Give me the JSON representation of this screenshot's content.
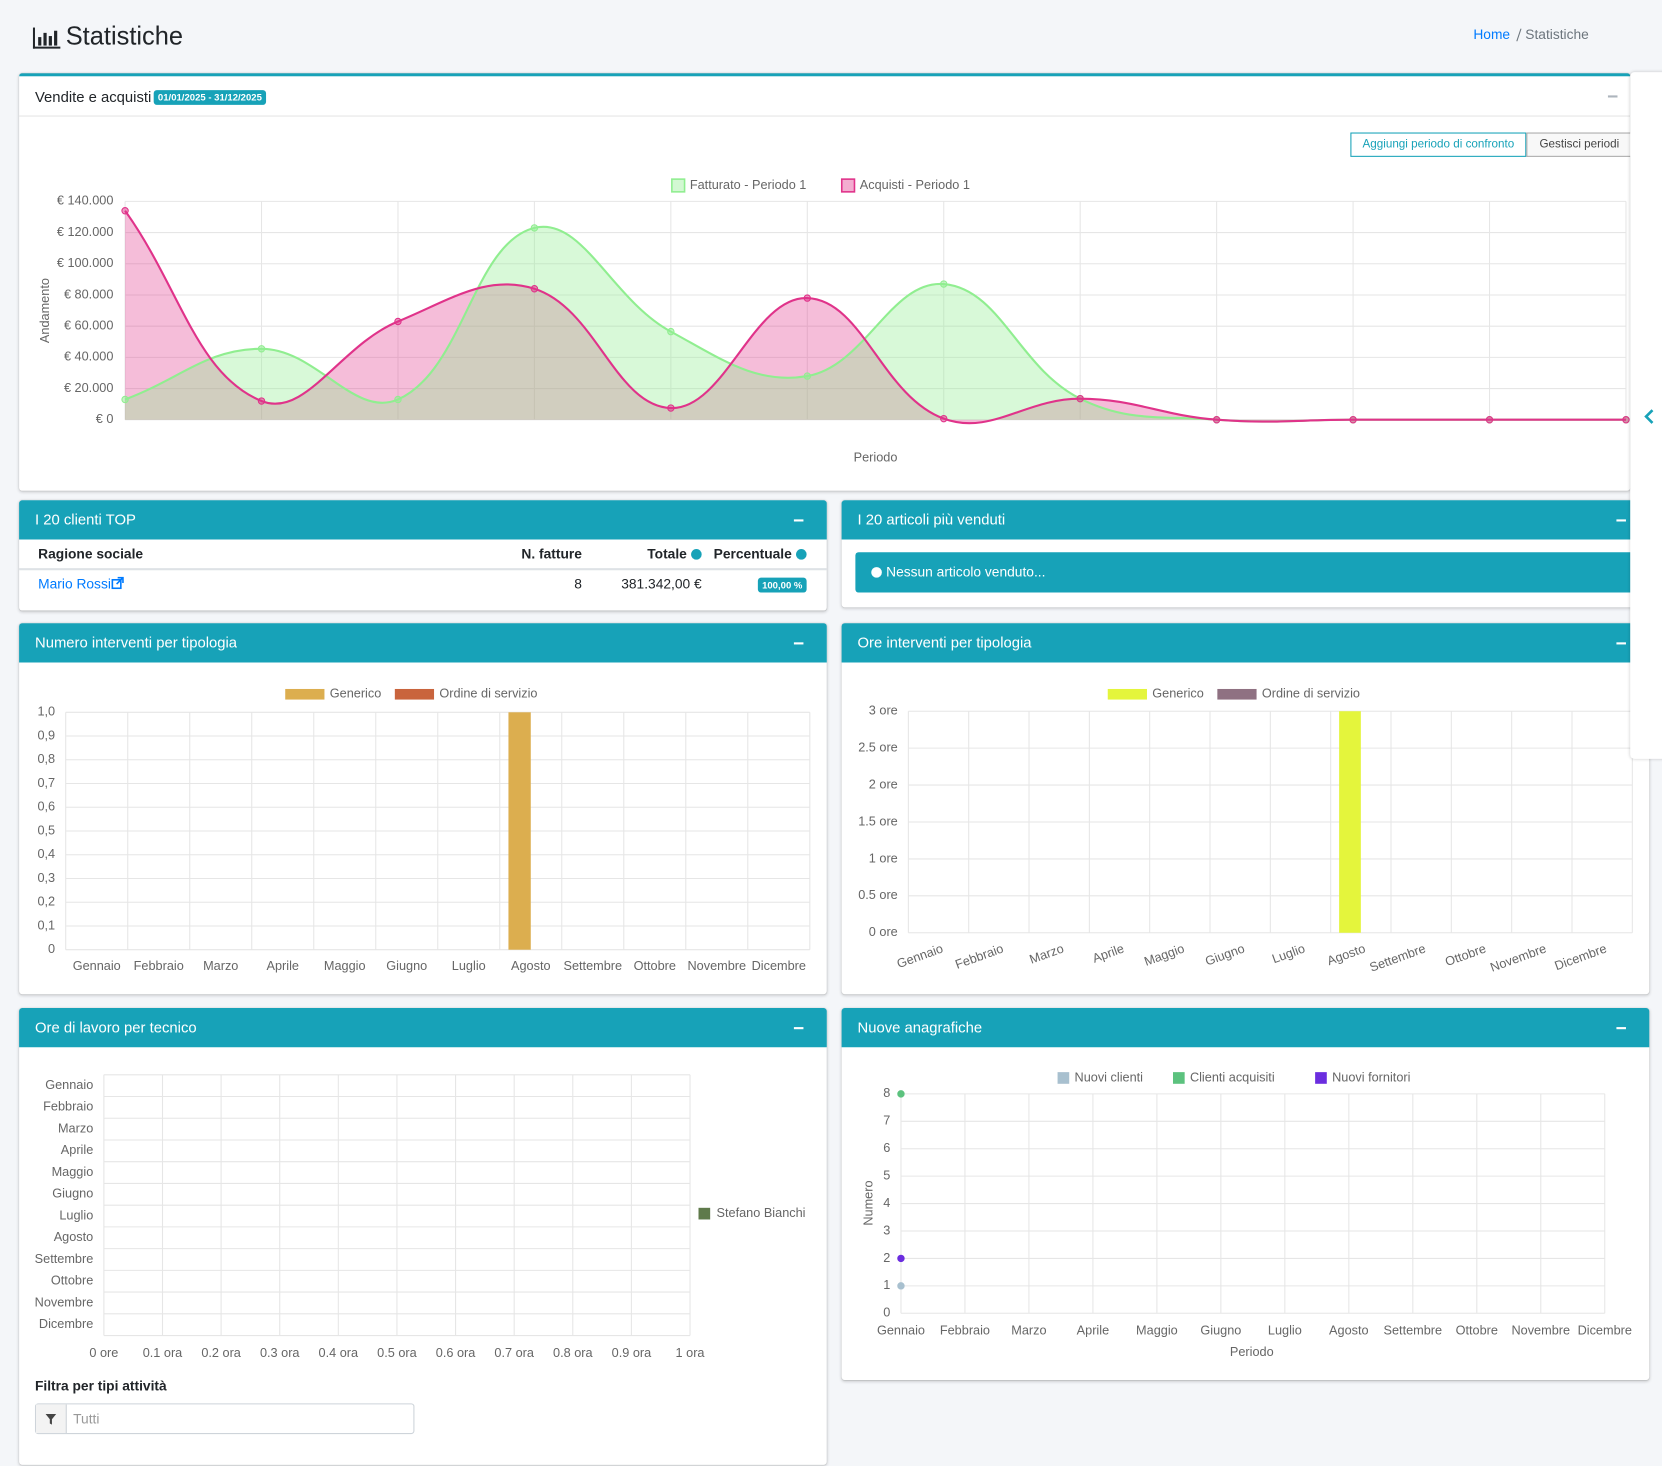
{
  "header": {
    "title": "Statistiche",
    "breadcrumb": [
      "Home",
      "Statistiche"
    ]
  },
  "sales_panel": {
    "badge": "01/01/2025 - 31/12/2025",
    "buttons": [
      "Aggiungi periodo di confronto",
      "Gestisci periodi"
    ]
  },
  "top_clients": {
    "title": "I 20 clienti TOP",
    "columns": [
      "Ragione sociale",
      "N. fatture",
      "Totale",
      "Percentuale"
    ],
    "rows": [
      [
        "Mario Rossi",
        8,
        "381.342,00 €",
        "100,00 %"
      ]
    ]
  },
  "top_articles": {
    "title": "I 20 articoli più venduti",
    "message": "Nessun articolo venduto..."
  },
  "technician_filter": {
    "label": "Filtra per tipi attività",
    "placeholder": "Tutti"
  },
  "chart_data": [
    {
      "type": "line",
      "title": "Vendite e acquisti",
      "fill": true,
      "smooth": true,
      "x_label": "Periodo",
      "y_label": "Andamento",
      "categories": [
        null,
        null,
        null,
        null,
        null,
        null,
        null,
        null,
        null,
        null,
        null,
        null
      ],
      "series": [
        {
          "name": "Fatturato - Periodo 1",
          "color": "#90ee90",
          "values": [
            13000,
            45500,
            13000,
            123000,
            56500,
            28000,
            87000,
            13500,
            0,
            0,
            0,
            0
          ]
        },
        {
          "name": "Acquisti - Periodo 1",
          "color": "#e0338a",
          "values": [
            134000,
            12000,
            63000,
            84000,
            7500,
            78000,
            700,
            13500,
            0,
            0,
            0,
            0
          ]
        }
      ],
      "ylim": [
        0,
        140000
      ],
      "yticks": [
        {
          "value": 0,
          "label": "€ 0"
        },
        {
          "value": 20000,
          "label": "€ 20.000"
        },
        {
          "value": 40000,
          "label": "€ 40.000"
        },
        {
          "value": 60000,
          "label": "€ 60.000"
        },
        {
          "value": 80000,
          "label": "€ 80.000"
        },
        {
          "value": 100000,
          "label": "€ 100.000"
        },
        {
          "value": 120000,
          "label": "€ 120.000"
        },
        {
          "value": 140000,
          "label": "€ 140.000"
        }
      ],
      "grid": true,
      "legend": "top"
    },
    {
      "type": "bar",
      "title": "Numero interventi per tipologia",
      "categories": [
        "Gennaio",
        "Febbraio",
        "Marzo",
        "Aprile",
        "Maggio",
        "Giugno",
        "Luglio",
        "Agosto",
        "Settembre",
        "Ottobre",
        "Novembre",
        "Dicembre"
      ],
      "series": [
        {
          "name": "Generico",
          "color": "#dcae4f",
          "values": [
            0,
            0,
            0,
            0,
            0,
            0,
            0,
            1,
            0,
            0,
            0,
            0
          ]
        },
        {
          "name": "Ordine di servizio",
          "color": "#c9643d",
          "values": [
            0,
            0,
            0,
            0,
            0,
            0,
            0,
            0,
            0,
            0,
            0,
            0
          ]
        }
      ],
      "ylim": [
        0,
        1
      ],
      "yticks": [
        0,
        {
          "value": 0.1,
          "label": "0,1"
        },
        {
          "value": 0.2,
          "label": "0,2"
        },
        {
          "value": 0.3,
          "label": "0,3"
        },
        {
          "value": 0.4,
          "label": "0,4"
        },
        {
          "value": 0.5,
          "label": "0,5"
        },
        {
          "value": 0.6,
          "label": "0,6"
        },
        {
          "value": 0.7,
          "label": "0,7"
        },
        {
          "value": 0.8,
          "label": "0,8"
        },
        {
          "value": 0.9,
          "label": "0,9"
        },
        {
          "value": 1,
          "label": "1,0"
        }
      ],
      "grid": true,
      "legend": "top"
    },
    {
      "type": "bar",
      "title": "Ore interventi per tipologia",
      "categories": [
        "Gennaio",
        "Febbraio",
        "Marzo",
        "Aprile",
        "Maggio",
        "Giugno",
        "Luglio",
        "Agosto",
        "Settembre",
        "Ottobre",
        "Novembre",
        "Dicembre"
      ],
      "series": [
        {
          "name": "Generico",
          "color": "#e4f53c",
          "values": [
            0,
            0,
            0,
            0,
            0,
            0,
            0,
            3,
            0,
            0,
            0,
            0
          ]
        },
        {
          "name": "Ordine di servizio",
          "color": "#8f7182",
          "values": [
            0,
            0,
            0,
            0,
            0,
            0,
            0,
            0,
            0,
            0,
            0,
            0
          ]
        }
      ],
      "ylim": [
        0,
        3
      ],
      "yticks": [
        {
          "value": 0,
          "label": "0 ore"
        },
        {
          "value": 0.5,
          "label": "0.5 ore"
        },
        {
          "value": 1,
          "label": "1 ore"
        },
        {
          "value": 1.5,
          "label": "1.5 ore"
        },
        {
          "value": 2,
          "label": "2 ore"
        },
        {
          "value": 2.5,
          "label": "2.5 ore"
        },
        {
          "value": 3,
          "label": "3 ore"
        }
      ],
      "grid": true,
      "legend": "top"
    },
    {
      "type": "bar",
      "orientation": "horizontal",
      "title": "Ore di lavoro per tecnico",
      "categories": [
        "Gennaio",
        "Febbraio",
        "Marzo",
        "Aprile",
        "Maggio",
        "Giugno",
        "Luglio",
        "Agosto",
        "Settembre",
        "Ottobre",
        "Novembre",
        "Dicembre"
      ],
      "series": [
        {
          "name": "Stefano Bianchi",
          "color": "#5f7a4b",
          "values": [
            0,
            0,
            0,
            0,
            0,
            0,
            0,
            0,
            0,
            0,
            0,
            0
          ]
        }
      ],
      "xlim": [
        0,
        1
      ],
      "xticks": [
        {
          "value": 0,
          "label": "0 ore"
        },
        {
          "value": 0.1,
          "label": "0.1 ora"
        },
        {
          "value": 0.2,
          "label": "0.2 ora"
        },
        {
          "value": 0.3,
          "label": "0.3 ora"
        },
        {
          "value": 0.4,
          "label": "0.4 ora"
        },
        {
          "value": 0.5,
          "label": "0.5 ora"
        },
        {
          "value": 0.6,
          "label": "0.6 ora"
        },
        {
          "value": 0.7,
          "label": "0.7 ora"
        },
        {
          "value": 0.8,
          "label": "0.8 ora"
        },
        {
          "value": 0.9,
          "label": "0.9 ora"
        },
        {
          "value": 1,
          "label": "1 ora"
        }
      ],
      "grid": true,
      "legend": "right"
    },
    {
      "type": "line",
      "title": "Nuove anagrafiche",
      "x_label": "Periodo",
      "y_label": "Numero",
      "categories": [
        "Gennaio",
        "Febbraio",
        "Marzo",
        "Aprile",
        "Maggio",
        "Giugno",
        "Luglio",
        "Agosto",
        "Settembre",
        "Ottobre",
        "Novembre",
        "Dicembre"
      ],
      "series": [
        {
          "name": "Nuovi clienti",
          "color": "#a8c0cf",
          "values": [
            1,
            null,
            null,
            null,
            null,
            null,
            null,
            null,
            null,
            null,
            null,
            null
          ]
        },
        {
          "name": "Clienti acquisiti",
          "color": "#5cc27e",
          "values": [
            8,
            null,
            null,
            null,
            null,
            null,
            null,
            null,
            null,
            null,
            null,
            null
          ]
        },
        {
          "name": "Nuovi fornitori",
          "color": "#6b2ddf",
          "values": [
            2,
            null,
            null,
            null,
            null,
            null,
            null,
            null,
            null,
            null,
            null,
            null
          ]
        }
      ],
      "ylim": [
        0,
        8
      ],
      "yticks": [
        0,
        1,
        2,
        3,
        4,
        5,
        6,
        7,
        8
      ],
      "grid": true,
      "legend": "top"
    }
  ]
}
